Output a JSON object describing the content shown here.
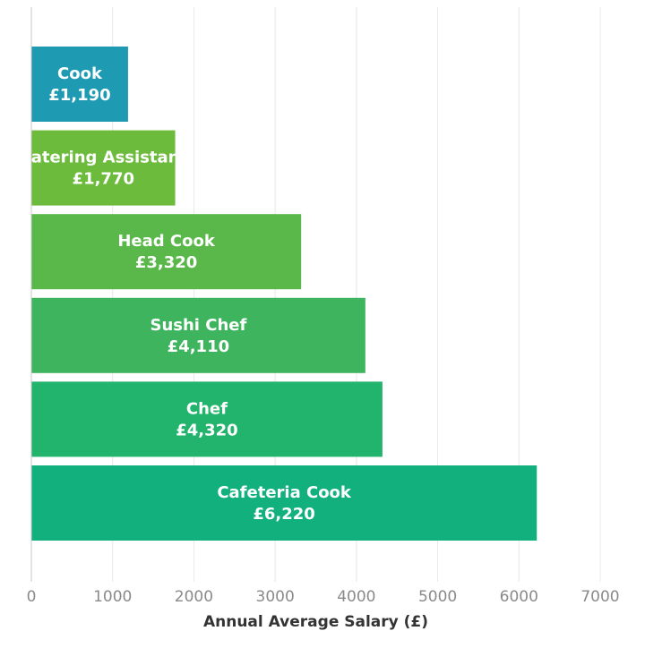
{
  "chart_data": {
    "type": "bar",
    "orientation": "horizontal",
    "categories": [
      "Cook",
      "Catering Assistant",
      "Head Cook",
      "Sushi Chef",
      "Chef",
      "Cafeteria Cook"
    ],
    "values": [
      1190,
      1770,
      3320,
      4110,
      4320,
      6220
    ],
    "value_labels": [
      "£1,190",
      "£1,770",
      "£3,320",
      "£4,110",
      "£4,320",
      "£6,220"
    ],
    "colors": [
      "#1e9bb2",
      "#6cbb3c",
      "#5ab84a",
      "#3db45d",
      "#22b46c",
      "#12b07c"
    ],
    "xlabel": "Annual Average Salary (£)",
    "ylabel": "",
    "title": "",
    "xlim": [
      0,
      7000
    ],
    "xticks": [
      0,
      1000,
      2000,
      3000,
      4000,
      5000,
      6000,
      7000
    ],
    "xtick_labels": [
      "0",
      "1000",
      "2000",
      "3000",
      "4000",
      "5000",
      "6000",
      "7000"
    ],
    "grid": "vertical",
    "legend": "none"
  }
}
